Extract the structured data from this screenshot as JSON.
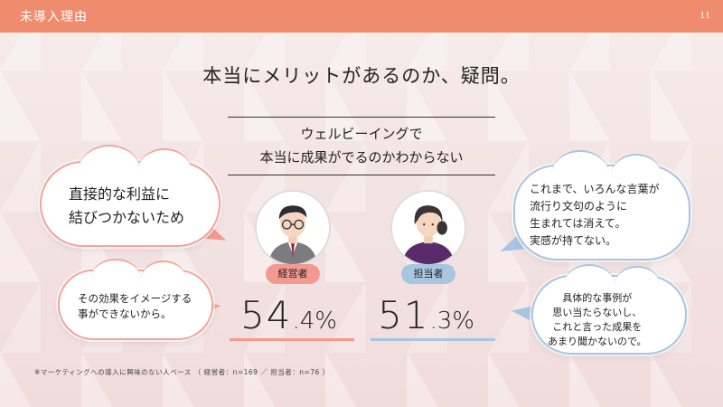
{
  "header": {
    "title": "未導入理由",
    "page_number": "11"
  },
  "headline": "本当にメリットがあるのか、疑問。",
  "question": {
    "line1": "ウェルビーイングで",
    "line2": "本当に成果がでるのかわからない"
  },
  "left_bubbles": {
    "big": {
      "line1": "直接的な利益に",
      "line2": "結びつかないため"
    },
    "small": {
      "line1": "その効果をイメージする",
      "line2": "事ができないから。"
    }
  },
  "right_bubbles": {
    "big": {
      "line1": "これまで、いろんな言葉が",
      "line2": "流行り文句のように",
      "line3": "生まれては消えて。",
      "line4": "実感が持てない。"
    },
    "small": {
      "line1": "具体的な事例が",
      "line2": "思い当たらないし、",
      "line3": "これと言った成果を",
      "line4": "あまり聞かないので。"
    }
  },
  "executive": {
    "label": "経営者",
    "value_int": "54",
    "value_dec": ".4%"
  },
  "staff": {
    "label": "担当者",
    "value_int": "51",
    "value_dec": ".3%"
  },
  "footnote": "※マーケティングへの導入に興味のない人ベース （ 経営者：n=169 ／ 担当者：n=76 ）",
  "colors": {
    "header": "#f08c6e",
    "executive": "#f29a8f",
    "staff": "#a9c6e0"
  }
}
